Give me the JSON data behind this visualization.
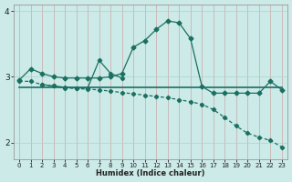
{
  "xlabel": "Humidex (Indice chaleur)",
  "bg_color": "#cceae8",
  "line_color": "#1a7060",
  "grid_color": "#aad4d0",
  "xlim": [
    -0.5,
    23.5
  ],
  "ylim": [
    1.75,
    4.1
  ],
  "yticks": [
    2,
    3,
    4
  ],
  "xticks": [
    0,
    1,
    2,
    3,
    4,
    5,
    6,
    7,
    8,
    9,
    10,
    11,
    12,
    13,
    14,
    15,
    16,
    17,
    18,
    19,
    20,
    21,
    22,
    23
  ],
  "series_upper_x": [
    0,
    1,
    2,
    3,
    4,
    5,
    6,
    7,
    8,
    9,
    10,
    11,
    12,
    13,
    14,
    15,
    16,
    17,
    18,
    19,
    20,
    21,
    22,
    23
  ],
  "series_upper_y": [
    2.95,
    3.12,
    3.05,
    3.0,
    2.98,
    2.98,
    2.98,
    2.98,
    3.0,
    3.05,
    3.45,
    3.55,
    3.72,
    3.85,
    3.82,
    3.58,
    2.85,
    2.75,
    2.75,
    2.75,
    2.75,
    2.75,
    2.93,
    2.8
  ],
  "series_flat_x": [
    0,
    1,
    2,
    3,
    4,
    5,
    6,
    7,
    8,
    9,
    10,
    11,
    12,
    13,
    14,
    15,
    16,
    17,
    18,
    19,
    20,
    21,
    22,
    23
  ],
  "series_flat_y": [
    2.84,
    2.84,
    2.84,
    2.84,
    2.84,
    2.84,
    2.84,
    2.84,
    2.84,
    2.84,
    2.84,
    2.84,
    2.84,
    2.84,
    2.84,
    2.84,
    2.84,
    2.84,
    2.84,
    2.84,
    2.84,
    2.84,
    2.84,
    2.84
  ],
  "series_descend_x": [
    0,
    1,
    2,
    3,
    4,
    5,
    6,
    7,
    8,
    9,
    10,
    11,
    12,
    13,
    14,
    15,
    16,
    17,
    18,
    19,
    20,
    21,
    22,
    23
  ],
  "series_descend_y": [
    2.93,
    2.93,
    2.88,
    2.86,
    2.83,
    2.82,
    2.81,
    2.8,
    2.78,
    2.76,
    2.74,
    2.72,
    2.7,
    2.68,
    2.65,
    2.62,
    2.58,
    2.5,
    2.38,
    2.25,
    2.14,
    2.08,
    2.03,
    1.93
  ],
  "series_spike_x": [
    2,
    3,
    4,
    5,
    6,
    7,
    8,
    9
  ],
  "series_spike_y": [
    2.88,
    2.86,
    2.84,
    2.83,
    2.83,
    3.25,
    3.05,
    2.98
  ]
}
